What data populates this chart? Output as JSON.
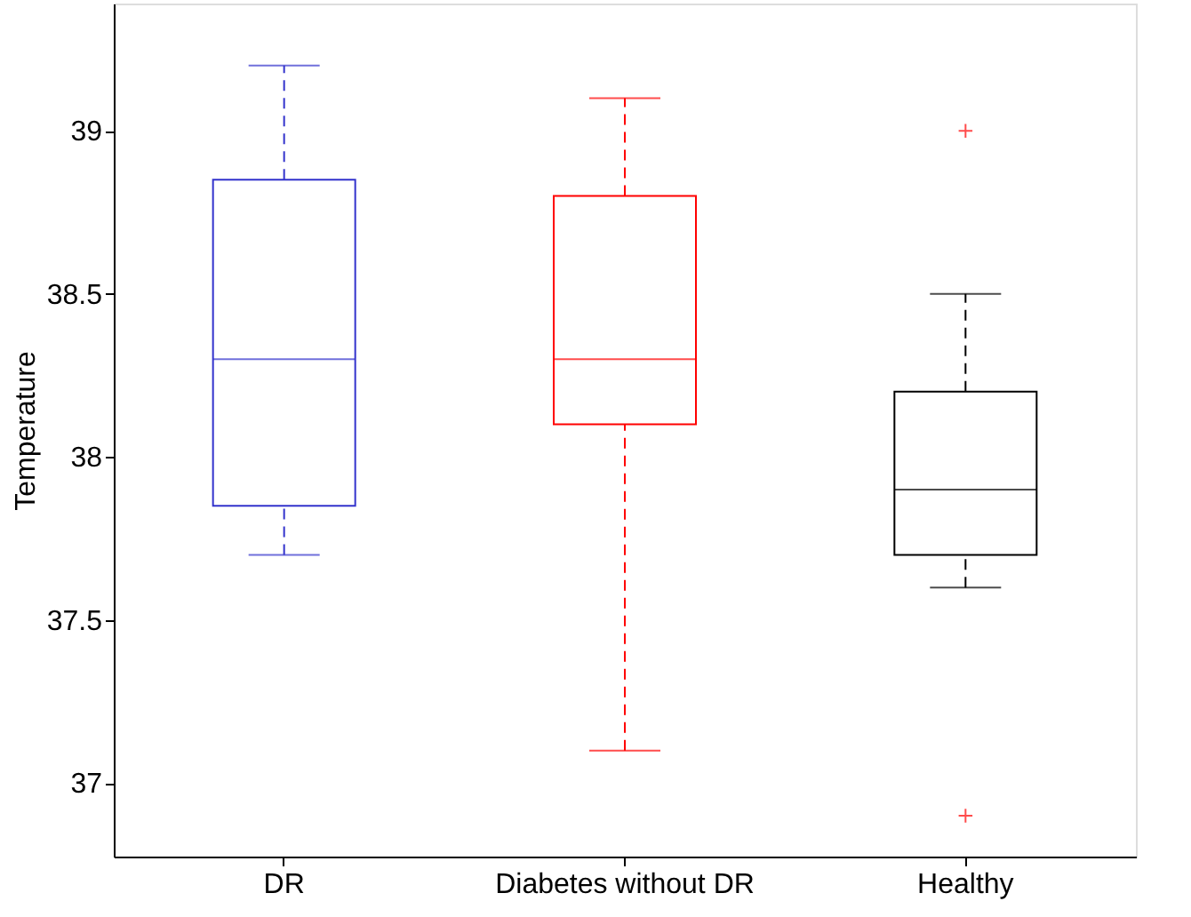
{
  "chart_data": {
    "type": "box",
    "ylabel": "Temperature",
    "categories": [
      "DR",
      "Diabetes without DR",
      "Healthy"
    ],
    "colors": [
      "#3333cc",
      "#ff0000",
      "#000000"
    ],
    "boxes": [
      {
        "low": 37.7,
        "q1": 37.85,
        "median": 38.3,
        "q3": 38.85,
        "high": 39.2
      },
      {
        "low": 37.1,
        "q1": 38.1,
        "median": 38.3,
        "q3": 38.8,
        "high": 39.1
      },
      {
        "low": 37.6,
        "q1": 37.7,
        "median": 37.9,
        "q3": 38.2,
        "high": 38.5,
        "outliers": [
          39.0,
          36.9
        ]
      }
    ],
    "ylim": [
      36.775,
      39.39
    ],
    "yticks": [
      37,
      37.5,
      38,
      38.5,
      39
    ],
    "grid": false
  }
}
